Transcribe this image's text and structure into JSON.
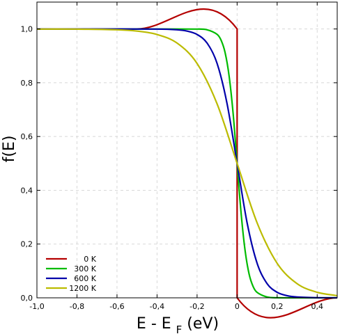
{
  "chart_data": {
    "type": "line",
    "title": "",
    "xlabel_main": "E - E",
    "xlabel_sub": "F",
    "xlabel_unit": "(eV)",
    "ylabel": "f(E)",
    "xlim": [
      -1.0,
      0.5
    ],
    "ylim": [
      0.0,
      1.1
    ],
    "xticks": [
      -1.0,
      -0.8,
      -0.6,
      -0.4,
      -0.2,
      0.0,
      0.2,
      0.4
    ],
    "xtick_labels": [
      "-1,0",
      "-0,8",
      "-0,6",
      "-0,4",
      "-0,2",
      "0",
      "0,2",
      "0,4"
    ],
    "yticks": [
      0.0,
      0.2,
      0.4,
      0.6,
      0.8,
      1.0
    ],
    "ytick_labels": [
      "0,0",
      "0,2",
      "0,4",
      "0,6",
      "0,8",
      "1,0"
    ],
    "grid": true,
    "legend_position": "bottom-left",
    "series": [
      {
        "name": "0 K",
        "color": "#b40000",
        "x": [
          -1.0,
          -0.5,
          0.0,
          0.0,
          0.0,
          0.5
        ],
        "y": [
          1.0,
          1.0,
          1.0,
          0.5,
          0.0,
          0.0
        ]
      },
      {
        "name": "300 K",
        "color": "#00bb00",
        "x": [
          -1.0,
          -0.2,
          -0.15,
          -0.1,
          -0.08,
          -0.06,
          -0.04,
          -0.02,
          0.0,
          0.02,
          0.04,
          0.06,
          0.08,
          0.1,
          0.15,
          0.2,
          0.5
        ],
        "y": [
          1.0,
          0.9996,
          0.997,
          0.98,
          0.958,
          0.912,
          0.825,
          0.686,
          0.5,
          0.314,
          0.175,
          0.088,
          0.042,
          0.02,
          0.003,
          0.0004,
          0.0
        ]
      },
      {
        "name": "600 K",
        "color": "#0000aa",
        "x": [
          -1.0,
          -0.4,
          -0.3,
          -0.25,
          -0.2,
          -0.15,
          -0.1,
          -0.05,
          0.0,
          0.05,
          0.1,
          0.15,
          0.2,
          0.25,
          0.3,
          0.4,
          0.5
        ],
        "y": [
          1.0,
          0.9996,
          0.997,
          0.9921,
          0.9795,
          0.9475,
          0.8717,
          0.7214,
          0.5,
          0.2786,
          0.1283,
          0.0525,
          0.0205,
          0.0079,
          0.003,
          0.0004,
          0.0001
        ]
      },
      {
        "name": "1200 K",
        "color": "#bbbb00",
        "x": [
          -1.0,
          -0.8,
          -0.6,
          -0.5,
          -0.4,
          -0.3,
          -0.2,
          -0.1,
          0.0,
          0.1,
          0.2,
          0.3,
          0.4,
          0.5
        ],
        "y": [
          0.9996,
          0.9995,
          0.997,
          0.9921,
          0.9795,
          0.9475,
          0.8717,
          0.7214,
          0.5,
          0.2786,
          0.1283,
          0.0525,
          0.0205,
          0.0079
        ]
      }
    ]
  }
}
